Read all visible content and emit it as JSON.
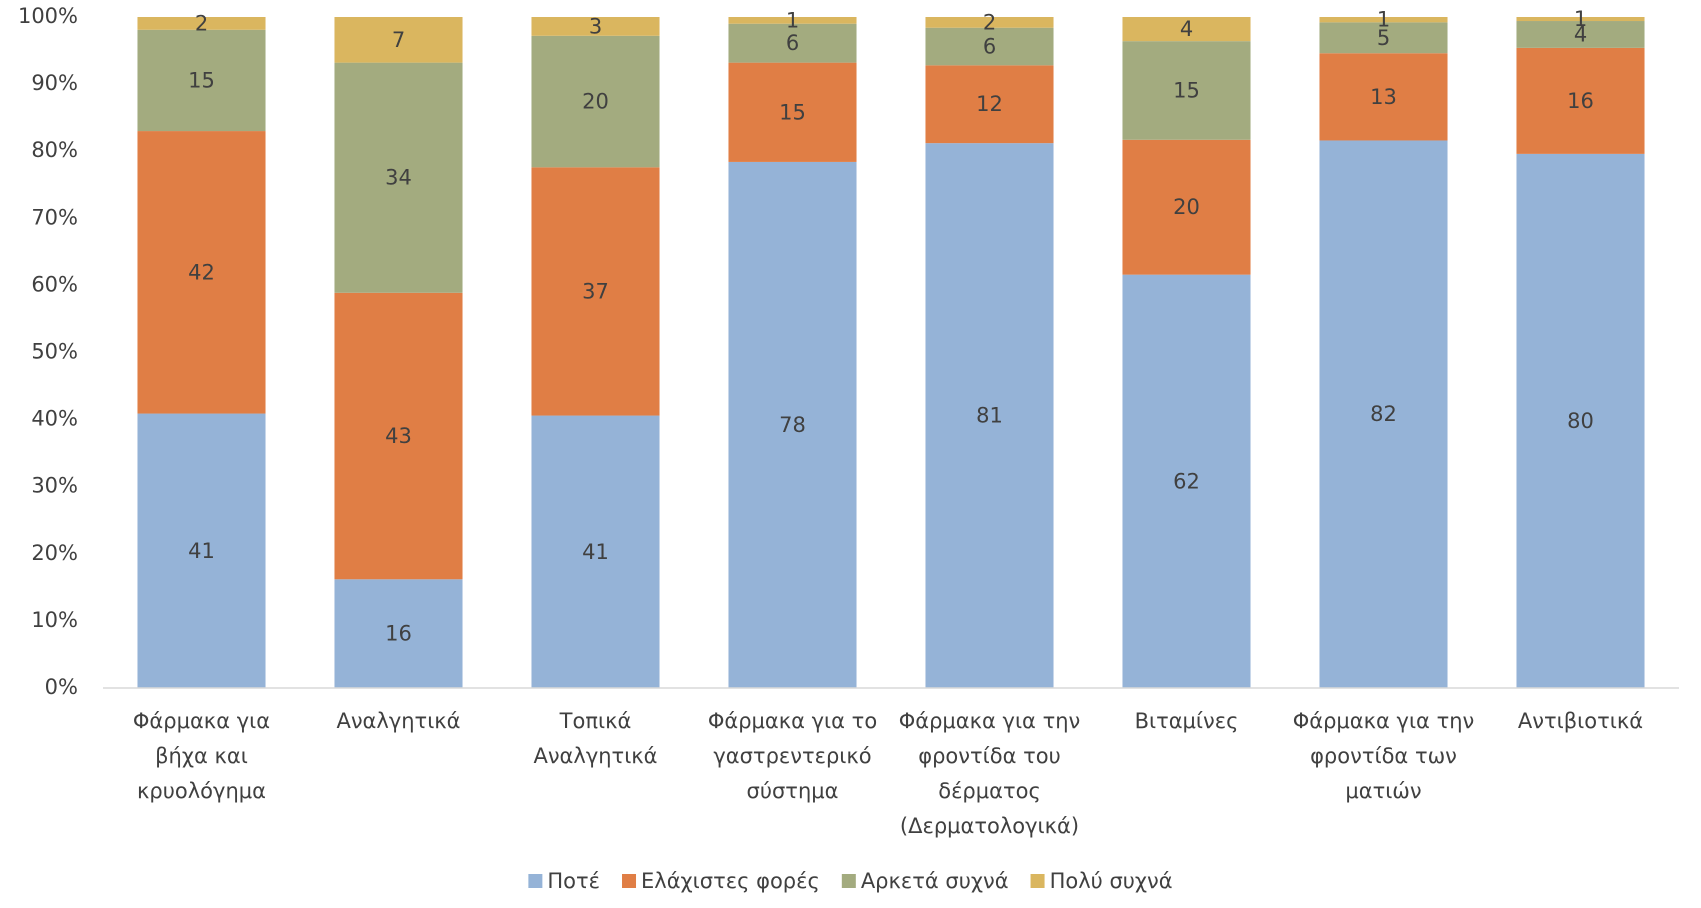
{
  "chart_data": {
    "type": "stacked_bar",
    "categories": [
      "Φάρμακα για βήχα και κρυολόγημα",
      "Αναλγητικά",
      "Τοπικά Αναλγητικά",
      "Φάρμακα για το γαστρεντερικό σύστημα",
      "Φάρμακα για την φροντίδα του δέρματος (Δερματολογικά)",
      "Βιταμίνες",
      "Φάρμακα για την φροντίδα των ματιών",
      "Αντιβιοτικά"
    ],
    "series": [
      {
        "name": "Ποτέ",
        "color": "#95b3d7",
        "values": [
          40.9,
          16.2,
          40.6,
          78.4,
          81.2,
          61.6,
          81.6,
          79.6
        ],
        "value_labels": [
          "41",
          "16",
          "41",
          "78",
          "81",
          "62",
          "82",
          "80"
        ]
      },
      {
        "name": "Ελάχιστες φορές",
        "color": "#e07e45",
        "values": [
          42.1,
          42.7,
          37.0,
          14.8,
          11.6,
          20.1,
          13.0,
          15.8
        ],
        "value_labels": [
          "42",
          "43",
          "37",
          "15",
          "12",
          "20",
          "13",
          "16"
        ]
      },
      {
        "name": "Αρκετά συχνά",
        "color": "#a3ab7f",
        "values": [
          15.1,
          34.3,
          19.6,
          5.8,
          5.6,
          14.7,
          4.6,
          4.0
        ],
        "value_labels": [
          "15",
          "34",
          "20",
          "6",
          "6",
          "15",
          "5",
          "4"
        ]
      },
      {
        "name": "Πολύ συχνά",
        "color": "#dab65f",
        "values": [
          1.9,
          6.8,
          2.8,
          1.0,
          1.6,
          3.6,
          0.8,
          0.6
        ],
        "value_labels": [
          "2",
          "7",
          "3",
          "1",
          "2",
          "4",
          "1",
          "1"
        ]
      }
    ],
    "ylim": [
      0,
      100
    ],
    "yticks": [
      {
        "value": 0,
        "label": "0%"
      },
      {
        "value": 10,
        "label": "10%"
      },
      {
        "value": 20,
        "label": "20%"
      },
      {
        "value": 30,
        "label": "30%"
      },
      {
        "value": 40,
        "label": "40%"
      },
      {
        "value": 50,
        "label": "50%"
      },
      {
        "value": 60,
        "label": "60%"
      },
      {
        "value": 70,
        "label": "70%"
      },
      {
        "value": 80,
        "label": "80%"
      },
      {
        "value": 90,
        "label": "90%"
      },
      {
        "value": 100,
        "label": "100%"
      }
    ],
    "legend": "bottom",
    "grid": false
  }
}
